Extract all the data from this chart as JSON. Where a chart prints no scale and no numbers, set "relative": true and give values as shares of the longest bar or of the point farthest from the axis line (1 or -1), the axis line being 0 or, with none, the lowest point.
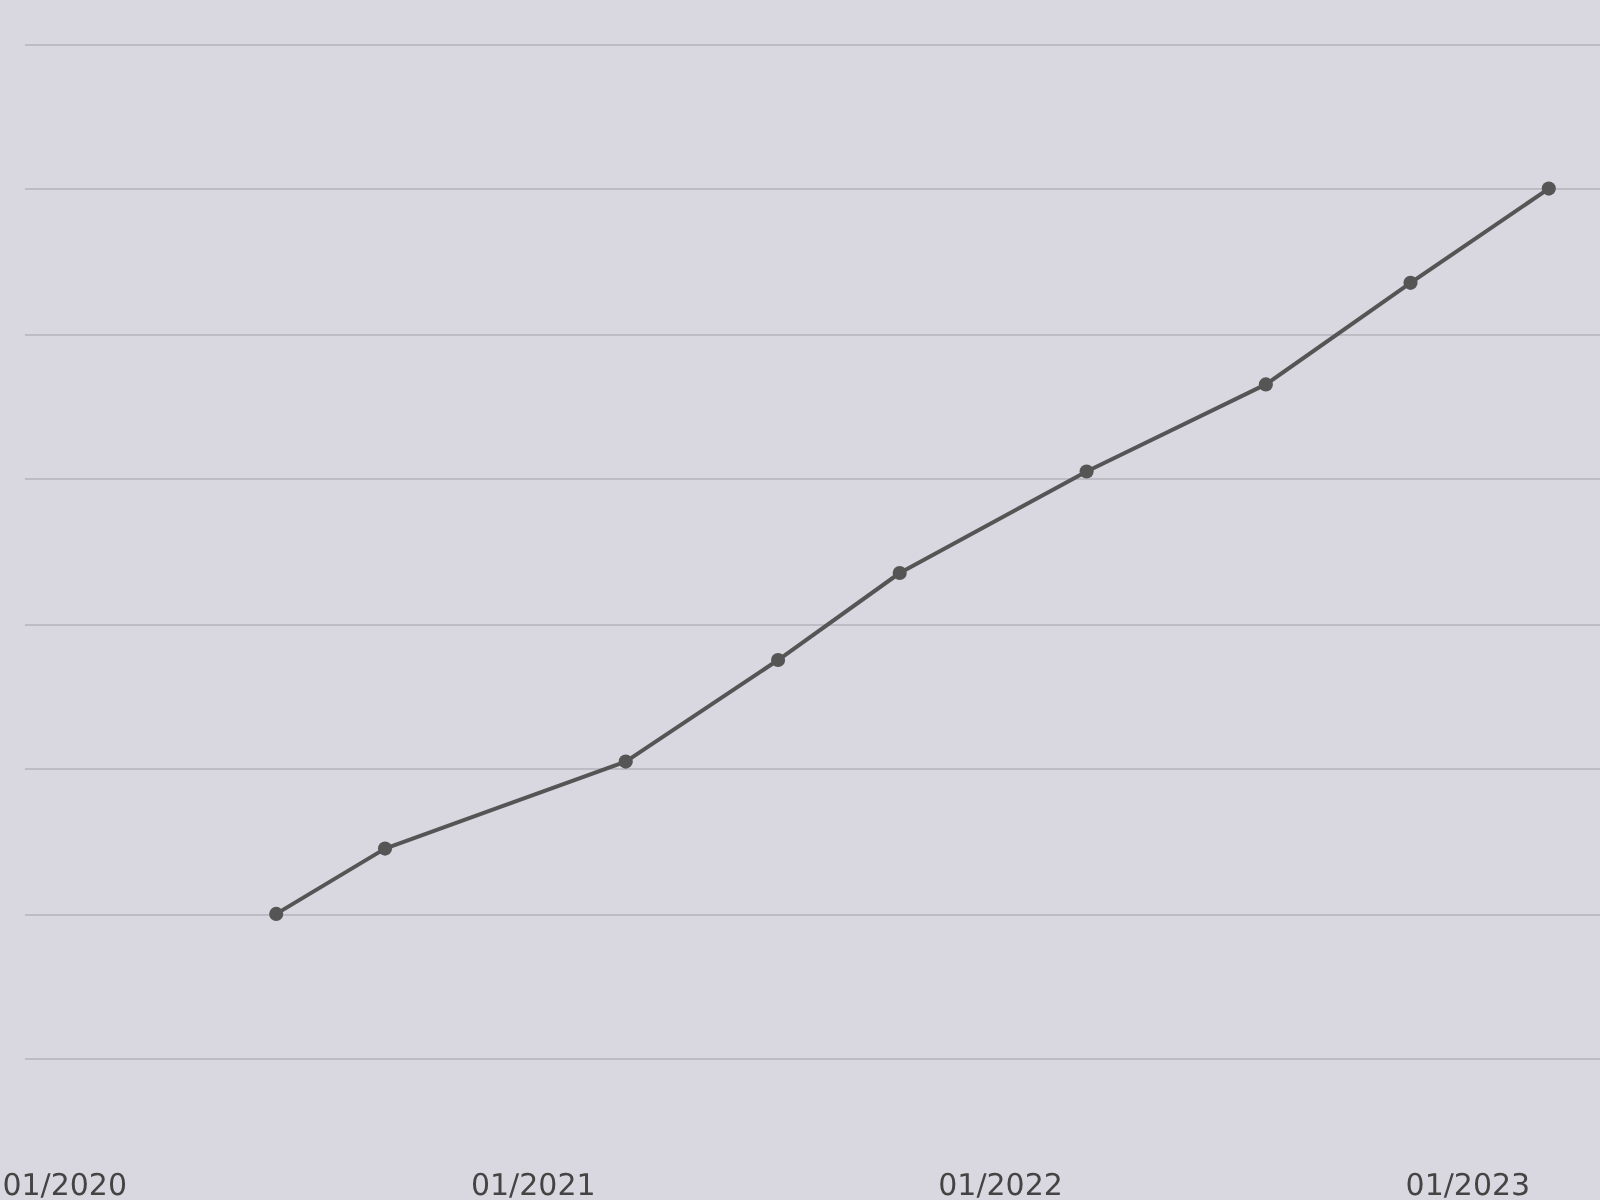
{
  "chart_data": {
    "type": "line",
    "relative": true,
    "x": [
      "2020-06-15",
      "2020-09-08",
      "2021-03-15",
      "2021-07-12",
      "2021-10-15",
      "2022-03-10",
      "2022-07-28",
      "2022-11-18",
      "2023-03-06"
    ],
    "series": [
      {
        "color": "#555555",
        "values": [
          0,
          0.09,
          0.21,
          0.35,
          0.47,
          0.61,
          0.73,
          0.87,
          1
        ]
      }
    ],
    "xlim": [
      "2019-12-01",
      "2023-04-15"
    ],
    "xticks": [
      {
        "value": "2020-01",
        "label": "01/2020"
      },
      {
        "value": "2021-01",
        "label": "01/2021"
      },
      {
        "value": "2022-01",
        "label": "01/2022"
      },
      {
        "value": "2023-01",
        "label": "01/2023"
      }
    ],
    "grid": "y",
    "marker": "circle",
    "line_style": "solid"
  }
}
